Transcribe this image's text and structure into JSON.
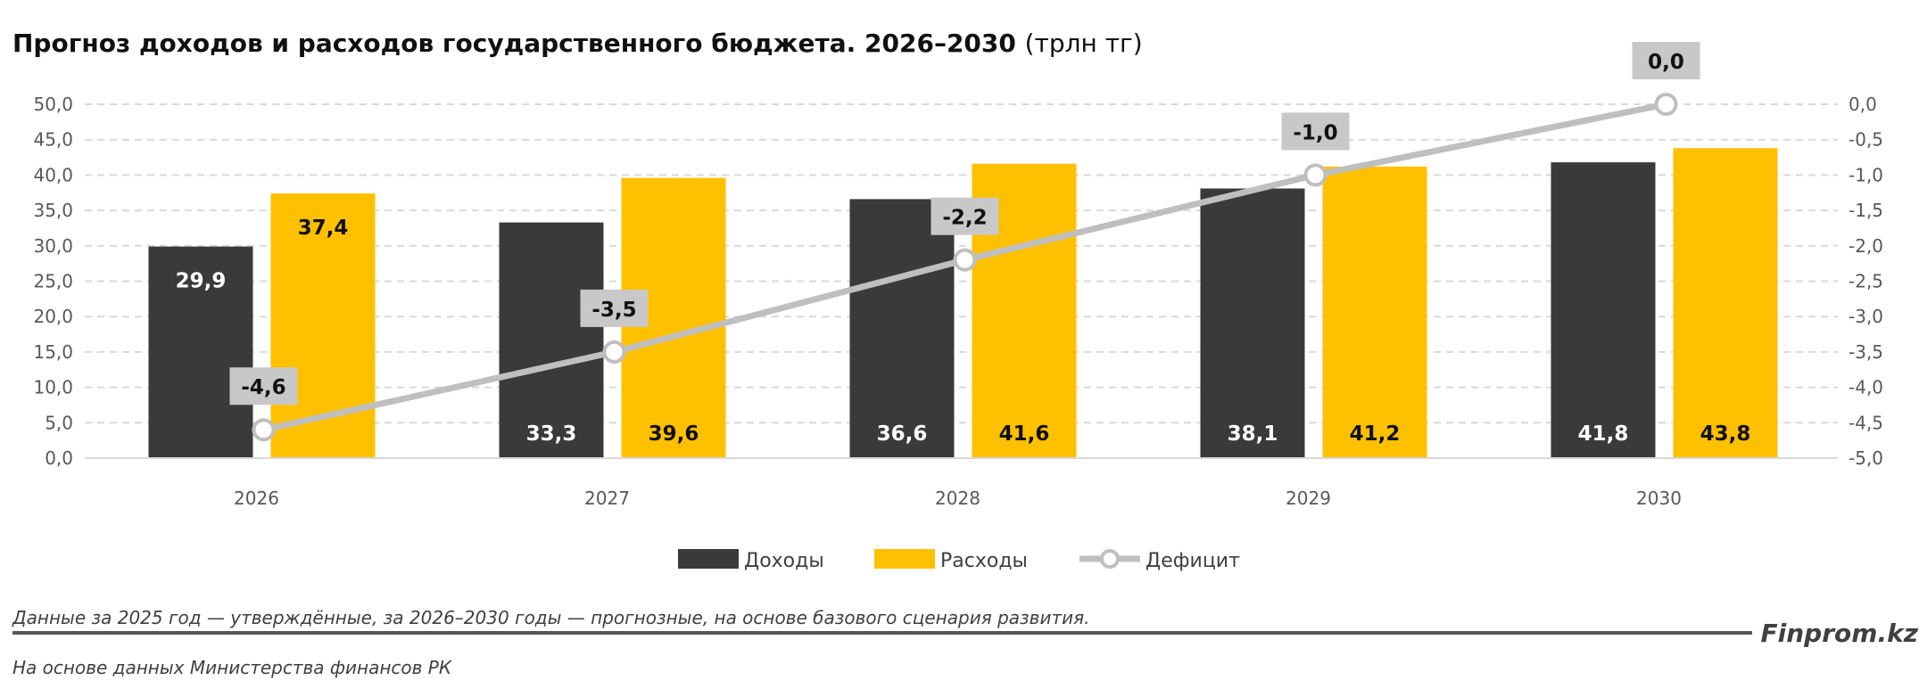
{
  "chart_data": {
    "type": "bar+line",
    "title": "Прогноз доходов и расходов государственного бюджета. 2026–2030",
    "title_unit": "(трлн тг)",
    "categories": [
      "2026",
      "2027",
      "2028",
      "2029",
      "2030"
    ],
    "series": [
      {
        "name": "Доходы",
        "type": "bar",
        "axis": "left",
        "color": "#3a3a3a",
        "values": [
          29.9,
          33.3,
          36.6,
          38.1,
          41.8
        ],
        "labels": [
          "29,9",
          "33,3",
          "36,6",
          "38,1",
          "41,8"
        ]
      },
      {
        "name": "Расходы",
        "type": "bar",
        "axis": "left",
        "color": "#ffc000",
        "values": [
          37.4,
          39.6,
          41.6,
          41.2,
          43.8
        ],
        "labels": [
          "37,4",
          "39,6",
          "41,6",
          "41,2",
          "43,8"
        ]
      },
      {
        "name": "Дефицит",
        "type": "line",
        "axis": "right",
        "color": "#bfbfbf",
        "values": [
          -4.6,
          -3.5,
          -2.2,
          -1.0,
          0.0
        ],
        "labels": [
          "-4,6",
          "-3,5",
          "-2,2",
          "-1,0",
          "0,0"
        ]
      }
    ],
    "left_axis": {
      "ylim": [
        0,
        50
      ],
      "ticks": [
        "0,0",
        "5,0",
        "10,0",
        "15,0",
        "20,0",
        "25,0",
        "30,0",
        "35,0",
        "40,0",
        "45,0",
        "50,0"
      ]
    },
    "right_axis": {
      "ylim": [
        -5,
        0
      ],
      "ticks": [
        "-5,0",
        "-4,5",
        "-4,0",
        "-3,5",
        "-3,0",
        "-2,5",
        "-2,0",
        "-1,5",
        "-1,0",
        "-0,5",
        "0,0"
      ]
    },
    "grid": true,
    "legend": "bottom"
  },
  "footer": {
    "note": "Данные за 2025 год — утверждённые, за 2026–2030 годы — прогнозные, на основе базового сценария развития.",
    "brand": "Finprom.kz",
    "source": "На основе данных Министерства финансов РК"
  }
}
